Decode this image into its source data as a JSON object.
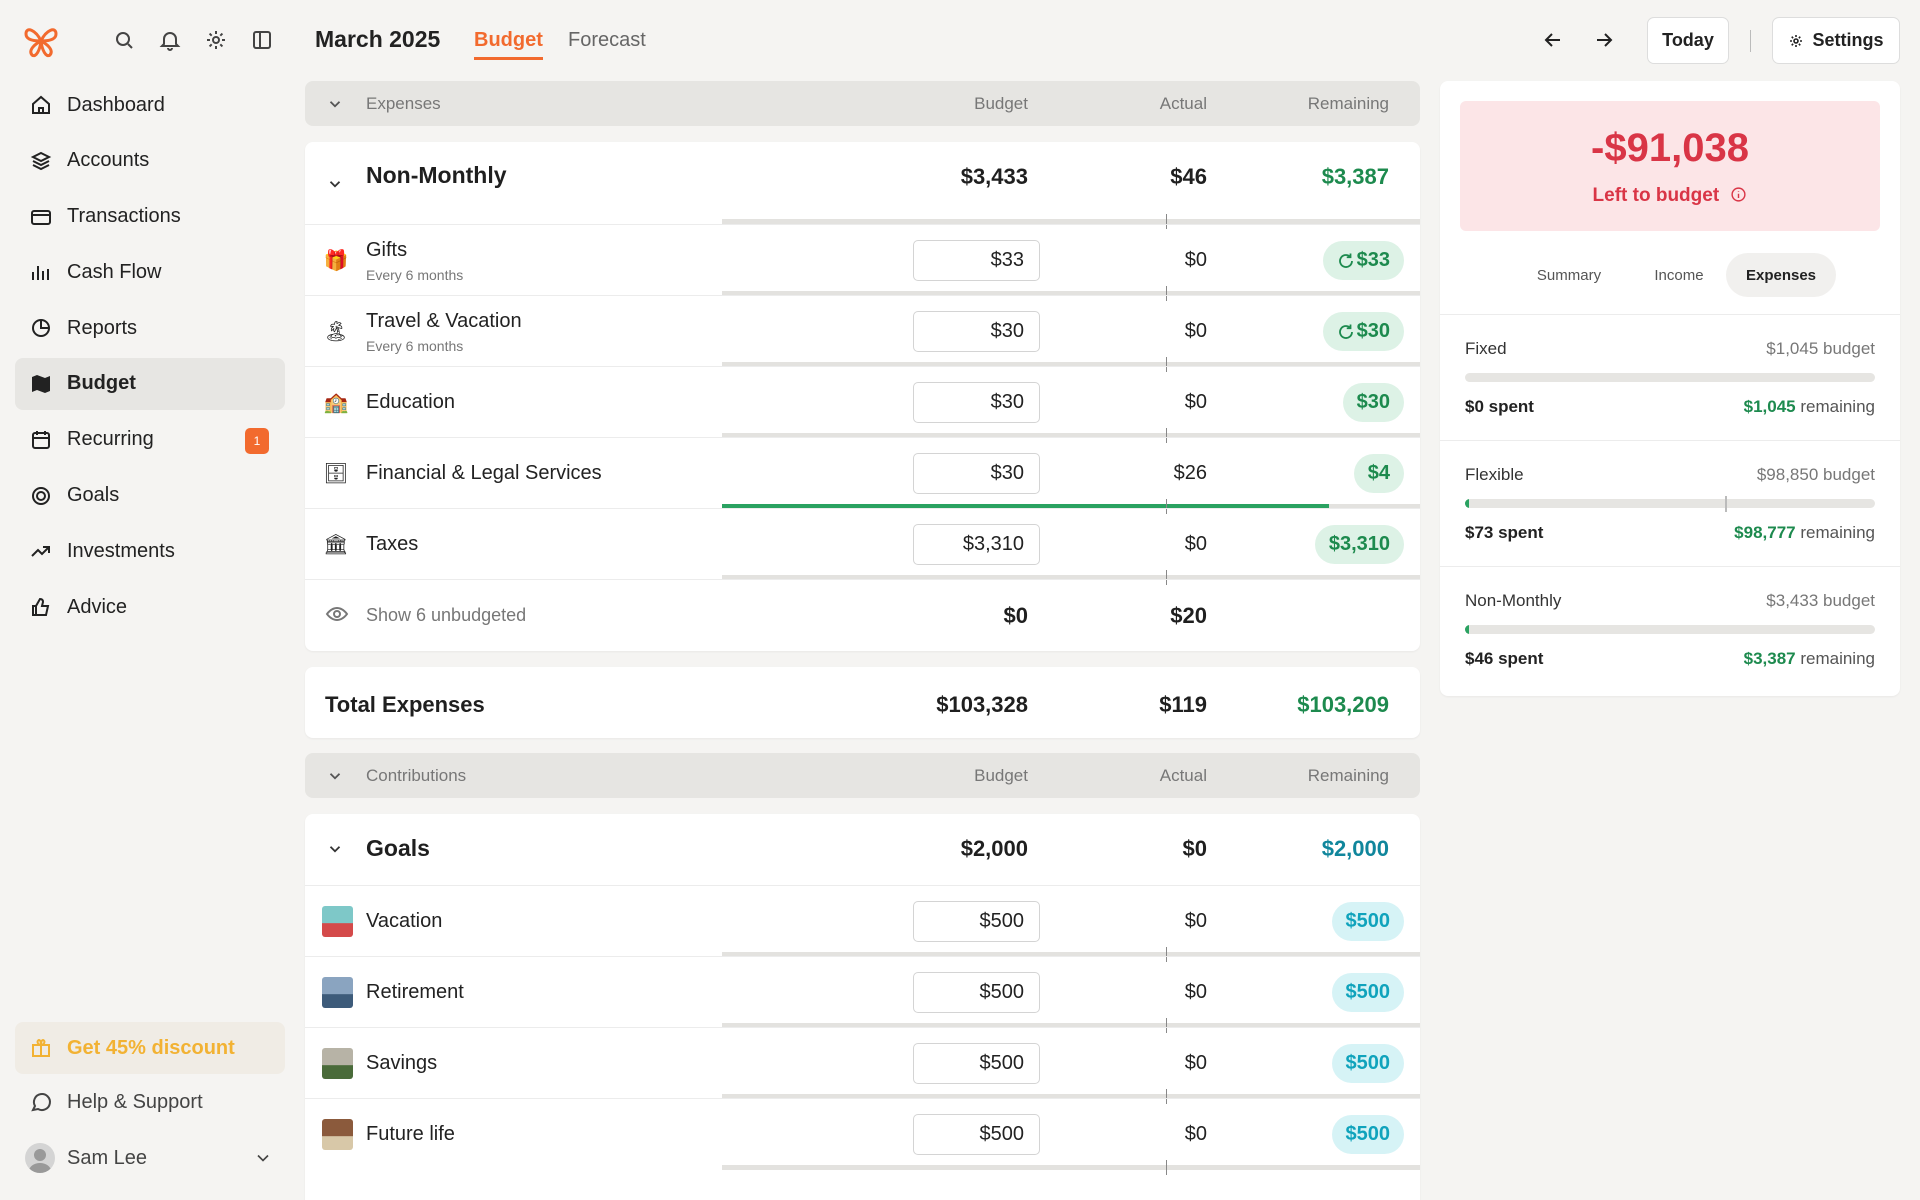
{
  "sidebar": {
    "nav": [
      {
        "label": "Dashboard",
        "icon": "home-icon"
      },
      {
        "label": "Accounts",
        "icon": "layers-icon"
      },
      {
        "label": "Transactions",
        "icon": "credit-card-icon"
      },
      {
        "label": "Cash Flow",
        "icon": "bar-chart-icon"
      },
      {
        "label": "Reports",
        "icon": "pie-chart-icon"
      },
      {
        "label": "Budget",
        "icon": "map-icon",
        "active": true
      },
      {
        "label": "Recurring",
        "icon": "calendar-icon",
        "badge": "1"
      },
      {
        "label": "Goals",
        "icon": "target-icon"
      },
      {
        "label": "Investments",
        "icon": "trending-up-icon"
      },
      {
        "label": "Advice",
        "icon": "thumbs-up-icon"
      }
    ],
    "promo": "Get 45% discount",
    "help": "Help & Support",
    "user": "Sam Lee"
  },
  "header": {
    "title": "March 2025",
    "tabs": [
      "Budget",
      "Forecast"
    ],
    "today": "Today",
    "settings": "Settings"
  },
  "expenses": {
    "header": {
      "label": "Expenses",
      "budget": "Budget",
      "actual": "Actual",
      "remaining": "Remaining"
    },
    "group": {
      "name": "Non-Monthly",
      "budget": "$3,433",
      "actual": "$46",
      "remaining": "$3,387"
    },
    "rows": [
      {
        "name": "Gifts",
        "sub": "Every 6 months",
        "icon": "gift-icon",
        "budget": "$33",
        "actual": "$0",
        "remaining": "$33",
        "rollover": true,
        "progress": 0
      },
      {
        "name": "Travel & Vacation",
        "sub": "Every 6 months",
        "icon": "palm-tree-icon",
        "budget": "$30",
        "actual": "$0",
        "remaining": "$30",
        "rollover": true,
        "progress": 0
      },
      {
        "name": "Education",
        "sub": "",
        "icon": "school-icon",
        "budget": "$30",
        "actual": "$0",
        "remaining": "$30",
        "rollover": false,
        "progress": 0
      },
      {
        "name": "Financial & Legal Services",
        "sub": "",
        "icon": "file-cabinet-icon",
        "budget": "$30",
        "actual": "$26",
        "remaining": "$4",
        "rollover": false,
        "progress": 0.87
      },
      {
        "name": "Taxes",
        "sub": "",
        "icon": "bank-icon",
        "budget": "$3,310",
        "actual": "$0",
        "remaining": "$3,310",
        "rollover": false,
        "progress": 0
      }
    ],
    "unbudgeted": {
      "label": "Show 6 unbudgeted",
      "budget": "$0",
      "actual": "$20"
    },
    "total": {
      "label": "Total Expenses",
      "budget": "$103,328",
      "actual": "$119",
      "remaining": "$103,209"
    }
  },
  "contributions": {
    "header": {
      "label": "Contributions",
      "budget": "Budget",
      "actual": "Actual",
      "remaining": "Remaining"
    },
    "group": {
      "name": "Goals",
      "budget": "$2,000",
      "actual": "$0",
      "remaining": "$2,000"
    },
    "rows": [
      {
        "name": "Vacation",
        "budget": "$500",
        "actual": "$0",
        "remaining": "$500",
        "colors": [
          "#7ec8c8",
          "#d44a4a"
        ]
      },
      {
        "name": "Retirement",
        "budget": "$500",
        "actual": "$0",
        "remaining": "$500",
        "colors": [
          "#8aa4c0",
          "#3d5b7a"
        ]
      },
      {
        "name": "Savings",
        "budget": "$500",
        "actual": "$0",
        "remaining": "$500",
        "colors": [
          "#b7b3a6",
          "#4a6b3a"
        ]
      },
      {
        "name": "Future life",
        "budget": "$500",
        "actual": "$0",
        "remaining": "$500",
        "colors": [
          "#8b5a3c",
          "#d8c8a8"
        ]
      }
    ]
  },
  "summary": {
    "left_amount": "-$91,038",
    "left_label": "Left to budget",
    "tabs": [
      "Summary",
      "Income",
      "Expenses"
    ],
    "active_tab": "Expenses",
    "sections": [
      {
        "name": "Fixed",
        "budget": "$1,045 budget",
        "spent": "$0 spent",
        "remaining_amount": "$1,045",
        "remaining_word": "remaining",
        "progress": 0
      },
      {
        "name": "Flexible",
        "budget": "$98,850 budget",
        "spent": "$73 spent",
        "remaining_amount": "$98,777",
        "remaining_word": "remaining",
        "progress": 0.001
      },
      {
        "name": "Non-Monthly",
        "budget": "$3,433 budget",
        "spent": "$46 spent",
        "remaining_amount": "$3,387",
        "remaining_word": "remaining",
        "progress": 0.013
      }
    ]
  },
  "colors": {
    "accent": "#f26a2e",
    "positive": "#1d8a4e",
    "negative": "#d93546",
    "goal": "#10a3bc"
  }
}
